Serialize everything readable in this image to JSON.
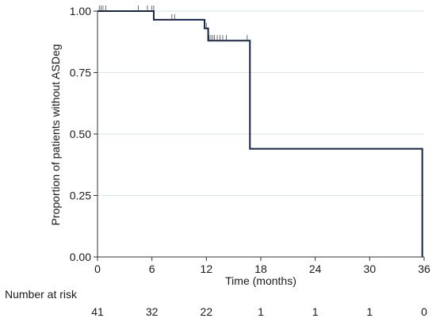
{
  "chart_data": {
    "type": "line",
    "subtype": "kaplan-meier",
    "xlabel": "Time (months)",
    "ylabel": "Proportion of patients without ASDeg",
    "xlim": [
      0,
      36
    ],
    "ylim": [
      0,
      1
    ],
    "xticks": [
      0,
      6,
      12,
      18,
      24,
      30,
      36
    ],
    "yticks": [
      0.0,
      0.25,
      0.5,
      0.75,
      1.0
    ],
    "ytick_labels": [
      "0.00",
      "0.25",
      "0.50",
      "0.75",
      "1.00"
    ],
    "grid": "horizontal",
    "series": [
      {
        "color": "#14264a",
        "steps": [
          {
            "x": 0,
            "y": 1.0
          },
          {
            "x": 6.2,
            "y": 0.965
          },
          {
            "x": 11.8,
            "y": 0.93
          },
          {
            "x": 12.2,
            "y": 0.88
          },
          {
            "x": 16.8,
            "y": 0.44
          },
          {
            "x": 35.8,
            "y": 0.0
          }
        ],
        "censored": [
          {
            "x": 0.2,
            "y": 1.0
          },
          {
            "x": 0.4,
            "y": 1.0
          },
          {
            "x": 0.6,
            "y": 1.0
          },
          {
            "x": 0.9,
            "y": 1.0
          },
          {
            "x": 4.5,
            "y": 1.0
          },
          {
            "x": 5.5,
            "y": 1.0
          },
          {
            "x": 6.0,
            "y": 1.0
          },
          {
            "x": 6.2,
            "y": 1.0
          },
          {
            "x": 8.2,
            "y": 0.965
          },
          {
            "x": 8.5,
            "y": 0.965
          },
          {
            "x": 12.0,
            "y": 0.93
          },
          {
            "x": 12.3,
            "y": 0.88
          },
          {
            "x": 12.5,
            "y": 0.88
          },
          {
            "x": 12.7,
            "y": 0.88
          },
          {
            "x": 12.9,
            "y": 0.88
          },
          {
            "x": 13.2,
            "y": 0.88
          },
          {
            "x": 13.5,
            "y": 0.88
          },
          {
            "x": 13.8,
            "y": 0.88
          },
          {
            "x": 14.2,
            "y": 0.88
          },
          {
            "x": 16.5,
            "y": 0.88
          }
        ]
      }
    ],
    "risk_table": {
      "label": "Number at risk",
      "times": [
        0,
        6,
        12,
        18,
        24,
        30,
        36
      ],
      "values": [
        "41",
        "32",
        "22",
        "1",
        "1",
        "1",
        "0"
      ]
    }
  }
}
